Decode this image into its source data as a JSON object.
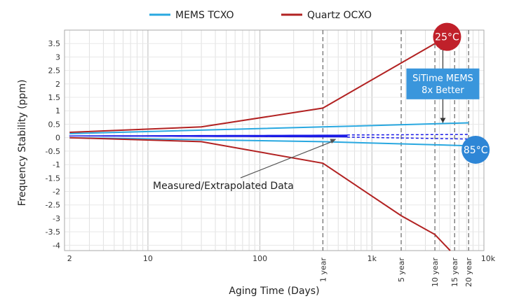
{
  "chart_data": {
    "type": "line",
    "xlabel": "Aging Time (Days)",
    "ylabel": "Frequency Stability (ppm)",
    "x_scale": "log",
    "xlim": [
      1.8,
      10000
    ],
    "ylim": [
      -4.2,
      4.0
    ],
    "x_ticks": [
      {
        "value": 2,
        "label": "2"
      },
      {
        "value": 10,
        "label": "10"
      },
      {
        "value": 100,
        "label": "100"
      },
      {
        "value": 1000,
        "label": "1k"
      },
      {
        "value": 10000,
        "label": "10k"
      }
    ],
    "y_ticks": [
      {
        "value": 3.5,
        "label": "3.5"
      },
      {
        "value": 3,
        "label": "3"
      },
      {
        "value": 2.5,
        "label": "2.5"
      },
      {
        "value": 2,
        "label": "2"
      },
      {
        "value": 1.5,
        "label": "1.5"
      },
      {
        "value": 1,
        "label": "1"
      },
      {
        "value": 0.5,
        "label": "0.5"
      },
      {
        "value": 0,
        "label": "0"
      },
      {
        "value": -0.5,
        "label": "-0.5"
      },
      {
        "value": -1,
        "label": "-1"
      },
      {
        "value": -1.5,
        "label": "-1.5"
      },
      {
        "value": -2,
        "label": "-2"
      },
      {
        "value": -2.5,
        "label": "-2.5"
      },
      {
        "value": -3,
        "label": "-3"
      },
      {
        "value": -3.5,
        "label": "-3.5"
      },
      {
        "value": -4,
        "label": "-4"
      }
    ],
    "markers": [
      {
        "value": 365,
        "label": "1 year"
      },
      {
        "value": 1825,
        "label": "5 year"
      },
      {
        "value": 3650,
        "label": "10 year"
      },
      {
        "value": 5475,
        "label": "15 year"
      },
      {
        "value": 7300,
        "label": "20 year"
      }
    ],
    "legend": [
      {
        "name": "MEMS TCXO",
        "color": "#29a8e0"
      },
      {
        "name": "Quartz OCXO",
        "color": "#b22222"
      }
    ],
    "series": [
      {
        "name": "MEMS TCXO",
        "color": "#29a8e0",
        "points": [
          [
            2,
            0.15
          ],
          [
            365,
            0.4
          ],
          [
            7300,
            0.55
          ]
        ]
      },
      {
        "name": "MEMS TCXO",
        "color": "#29a8e0",
        "points": [
          [
            2,
            0.0
          ],
          [
            365,
            -0.15
          ],
          [
            7300,
            -0.3
          ]
        ]
      },
      {
        "name": "Quartz OCXO",
        "color": "#b22222",
        "points": [
          [
            2,
            0.2
          ],
          [
            30,
            0.4
          ],
          [
            365,
            1.1
          ],
          [
            3650,
            3.5
          ]
        ]
      },
      {
        "name": "Quartz OCXO",
        "color": "#b22222",
        "points": [
          [
            2,
            0.0
          ],
          [
            30,
            -0.15
          ],
          [
            365,
            -0.95
          ],
          [
            1825,
            -2.9
          ],
          [
            3650,
            -3.6
          ],
          [
            5000,
            -4.2
          ]
        ]
      }
    ],
    "measured": {
      "color": "#1a1ae6",
      "solid": {
        "x_start": 2,
        "x_end": 600
      },
      "dashed": {
        "x_start": 600,
        "x_end": 7300
      },
      "upper": [
        [
          2,
          0.07
        ],
        [
          600,
          0.1
        ],
        [
          7300,
          0.12
        ]
      ],
      "lower": [
        [
          2,
          0.06
        ],
        [
          600,
          0.02
        ],
        [
          7300,
          -0.05
        ]
      ]
    },
    "annotations": {
      "badge_25": {
        "label": "25°C",
        "color": "#c0202a",
        "x": 4300,
        "y": 3.75
      },
      "badge_85": {
        "label": "85°C",
        "color": "#2e86d6",
        "x": 7300,
        "y": -0.45
      },
      "better_box": {
        "lines": [
          "SiTime MEMS",
          "8x Better"
        ],
        "color": "#3a96dc",
        "x": 4300,
        "y": 2.0
      },
      "arrow": {
        "x": 4300,
        "y_top": 3.45,
        "y_bottom": 0.55
      },
      "measured_label": {
        "text": "Measured/Extrapolated Data",
        "x": 60,
        "y": -1.65,
        "arrow_to": [
          480,
          -0.05
        ]
      }
    }
  }
}
